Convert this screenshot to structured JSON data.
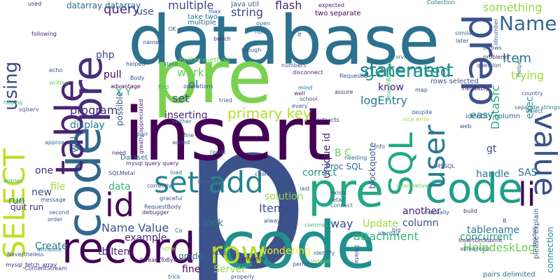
{
  "words": [
    {
      "text": "p",
      "color": "#3b528b"
    },
    {
      "text": "database",
      "color": "#2c728e"
    },
    {
      "text": "insert",
      "color": "#440154"
    },
    {
      "text": "code",
      "color": "#21908c"
    },
    {
      "text": "code",
      "color": "#31688e"
    },
    {
      "text": "pre",
      "color": "#7ad151"
    },
    {
      "text": "pre",
      "color": "#22a884"
    },
    {
      "text": "code",
      "color": "#1f9e89"
    },
    {
      "text": "prep",
      "color": "#3b528b"
    },
    {
      "text": "table",
      "color": "#482475"
    },
    {
      "text": "SELECT",
      "color": "#c0df25"
    },
    {
      "text": "record",
      "color": "#440154"
    },
    {
      "text": "row",
      "color": "#b5de2b"
    },
    {
      "text": "set add",
      "color": "#26828e"
    },
    {
      "text": "value",
      "color": "#3b528b"
    },
    {
      "text": "id",
      "color": "#440154"
    },
    {
      "text": "pre",
      "color": "#472d7b"
    },
    {
      "text": "SQL",
      "color": "#22a884"
    },
    {
      "text": "user",
      "color": "#2a788e"
    },
    {
      "text": "using",
      "color": "#3e4989"
    },
    {
      "text": "li",
      "color": "#440154"
    },
    {
      "text": "statement",
      "color": "#2a788e"
    },
    {
      "text": "generated",
      "color": "#1f9e89"
    },
    {
      "text": "Name",
      "color": "#31688e"
    },
    {
      "text": "primary key",
      "color": "#b5de2b"
    },
    {
      "text": "query",
      "color": "#482878"
    },
    {
      "text": "multiple",
      "color": "#3e4989"
    },
    {
      "text": "string",
      "color": "#414487"
    },
    {
      "text": "flash",
      "color": "#482475"
    },
    {
      "text": "something",
      "color": "#90d743"
    },
    {
      "text": "Item",
      "color": "#2a788e"
    },
    {
      "text": "trying",
      "color": "#a0da39"
    },
    {
      "text": "exec",
      "color": "#1f9e89"
    },
    {
      "text": "DataSrc",
      "color": "#25ab82"
    },
    {
      "text": "logEntry",
      "color": "#2a788e"
    },
    {
      "text": "HelpdeskLog",
      "color": "#6ccd5a"
    },
    {
      "text": "Name Value",
      "color": "#3b528b"
    },
    {
      "text": "attachment",
      "color": "#35b779"
    },
    {
      "text": "Items",
      "color": "#3e4989"
    },
    {
      "text": "concurrent",
      "color": "#1f9e89"
    },
    {
      "text": "connection",
      "color": "#21918c"
    },
    {
      "text": "tablename",
      "color": "#2a788e"
    },
    {
      "text": "column",
      "color": "#3b528b"
    },
    {
      "text": "another",
      "color": "#482475"
    },
    {
      "text": "example",
      "color": "#472d7b"
    },
    {
      "text": "wondering",
      "color": "#fde725"
    },
    {
      "text": "tblItem",
      "color": "#482878"
    },
    {
      "text": "Create",
      "color": "#26828e"
    },
    {
      "text": "fine",
      "color": "#440154"
    },
    {
      "text": "Server",
      "color": "#90d743"
    },
    {
      "text": "grade",
      "color": "#2c728e"
    },
    {
      "text": "correct",
      "color": "#21918c"
    },
    {
      "text": "way",
      "color": "#3b528b"
    },
    {
      "text": "Update",
      "color": "#a0da39"
    },
    {
      "text": "solution",
      "color": "#90d743"
    },
    {
      "text": "die",
      "color": "#3b528b"
    },
    {
      "text": "look",
      "color": "#2c728e"
    },
    {
      "text": "program",
      "color": "#472d7b"
    },
    {
      "text": "display",
      "color": "#2a788e"
    },
    {
      "text": "will",
      "color": "#31688e"
    },
    {
      "text": "work",
      "color": "#6ccd5a"
    },
    {
      "text": "ol",
      "color": "#2c728e"
    },
    {
      "text": "set",
      "color": "#3e4989"
    },
    {
      "text": "inserting",
      "color": "#482475"
    },
    {
      "text": "pull",
      "color": "#440154"
    },
    {
      "text": "X Y",
      "color": "#35b779"
    },
    {
      "text": "php",
      "color": "#414487"
    },
    {
      "text": "use",
      "color": "#3b528b"
    },
    {
      "text": "possible",
      "color": "#3b528b"
    },
    {
      "text": "know",
      "color": "#482475"
    },
    {
      "text": "easy",
      "color": "#21918c"
    },
    {
      "text": "gt",
      "color": "#3e4989"
    },
    {
      "text": "SAS",
      "color": "#2c728e"
    },
    {
      "text": "handle",
      "color": "#2a788e"
    },
    {
      "text": "blockquote",
      "color": "#3b528b"
    },
    {
      "text": "unique id",
      "color": "#482878"
    },
    {
      "text": "B C",
      "color": "#6ccd5a"
    },
    {
      "text": "Proc SQL",
      "color": "#31688e"
    },
    {
      "text": "one",
      "color": "#472d7b"
    },
    {
      "text": "run",
      "color": "#2c728e"
    },
    {
      "text": "data",
      "color": "#35b779"
    },
    {
      "text": "file",
      "color": "#a0da39"
    },
    {
      "text": "new",
      "color": "#3b528b"
    },
    {
      "text": "quit run",
      "color": "#482475"
    },
    {
      "text": "Dataset",
      "color": "#31688e"
    },
    {
      "text": "used",
      "color": "#482878"
    },
    {
      "text": "datarray datarray",
      "color": "#31688e"
    },
    {
      "text": "java util",
      "color": "#3b528b"
    },
    {
      "text": "expected",
      "color": "#482475"
    },
    {
      "text": "two separate",
      "color": "#440154"
    },
    {
      "text": "Collection",
      "color": "#2a788e"
    },
    {
      "text": "throws",
      "color": "#3b528b"
    },
    {
      "text": "separate strings",
      "color": "#2c728e"
    },
    {
      "text": "object",
      "color": "#31688e"
    },
    {
      "text": "country",
      "color": "#3b528b"
    },
    {
      "text": "mysql_fetch_array",
      "color": "#482475"
    },
    {
      "text": "ContentStream",
      "color": "#3e4989"
    },
    {
      "text": "StreamToByteArray",
      "color": "#482878"
    },
    {
      "text": "RequestBody",
      "color": "#3b528b"
    },
    {
      "text": "InsertOnSubmit",
      "color": "#472d7b"
    },
    {
      "text": "please explain",
      "color": "#3b528b"
    },
    {
      "text": "pairs delimited",
      "color": "#2c728e"
    },
    {
      "text": "rows selected",
      "color": "#3b528b"
    },
    {
      "text": "identity column",
      "color": "#31688e"
    },
    {
      "text": "mysql query query",
      "color": "#482475"
    },
    {
      "text": "SQLMetal",
      "color": "#3b528b"
    },
    {
      "text": "better method",
      "color": "#6ccd5a"
    },
    {
      "text": "greatly appreciated",
      "color": "#482878"
    },
    {
      "text": "Nevertheless",
      "color": "#3b528b"
    },
    {
      "text": "take two",
      "color": "#2a788e"
    },
    {
      "text": "multiple",
      "color": "#2c728e"
    },
    {
      "text": "MSSQL",
      "color": "#3b528b"
    },
    {
      "text": "StreamReader",
      "color": "#35b779"
    },
    {
      "text": "RequestID",
      "color": "#3b528b"
    },
    {
      "text": "inevitably",
      "color": "#482475"
    },
    {
      "text": "idnumber",
      "color": "#31688e"
    },
    {
      "text": "question",
      "color": "#3b528b"
    },
    {
      "text": "problems",
      "color": "#482878"
    },
    {
      "text": "Helper",
      "color": "#2c728e"
    },
    {
      "text": "helped",
      "color": "#3b528b"
    },
    {
      "text": "advantage",
      "color": "#440154"
    },
    {
      "text": "operations",
      "color": "#3e4989"
    },
    {
      "text": "numbers",
      "color": "#3b528b"
    },
    {
      "text": "disconnect",
      "color": "#482475"
    },
    {
      "text": "similar",
      "color": "#31688e"
    },
    {
      "text": "later",
      "color": "#3b528b"
    },
    {
      "text": "following",
      "color": "#482878"
    },
    {
      "text": "named",
      "color": "#3b528b"
    },
    {
      "text": "store",
      "color": "#2a788e"
    },
    {
      "text": "though",
      "color": "#3b528b"
    },
    {
      "text": "srvr",
      "color": "#31688e"
    },
    {
      "text": "echo",
      "color": "#3b528b"
    },
    {
      "text": "written",
      "color": "#6ccd5a"
    },
    {
      "text": "hoping",
      "color": "#35b779"
    },
    {
      "text": "sqlserv",
      "color": "#3b528b"
    },
    {
      "text": "result",
      "color": "#2c728e"
    },
    {
      "text": "tried",
      "color": "#31688e"
    },
    {
      "text": "every",
      "color": "#3b528b"
    },
    {
      "text": "extracts",
      "color": "#482475"
    },
    {
      "text": "nice error",
      "color": "#a0da39"
    },
    {
      "text": "web",
      "color": "#3b528b"
    },
    {
      "text": "despite",
      "color": "#31688e"
    },
    {
      "text": "assure",
      "color": "#482878"
    },
    {
      "text": "map",
      "color": "#3b528b"
    },
    {
      "text": "mind",
      "color": "#2c728e"
    },
    {
      "text": "school",
      "color": "#3b528b"
    },
    {
      "text": "well",
      "color": "#482475"
    },
    {
      "text": "info",
      "color": "#3b528b"
    },
    {
      "text": "needing",
      "color": "#31688e"
    },
    {
      "text": "chances",
      "color": "#3b528b"
    },
    {
      "text": "neither",
      "color": "#2c728e"
    },
    {
      "text": "added",
      "color": "#3b528b"
    },
    {
      "text": "need",
      "color": "#482878"
    },
    {
      "text": "approaches",
      "color": "#31688e"
    },
    {
      "text": "entries",
      "color": "#35b779"
    },
    {
      "text": "message",
      "color": "#3b528b"
    },
    {
      "text": "second",
      "color": "#31688e"
    },
    {
      "text": "order",
      "color": "#3b528b"
    },
    {
      "text": "load",
      "color": "#2c728e"
    },
    {
      "text": "correctly",
      "color": "#3b528b"
    },
    {
      "text": "readable",
      "color": "#31688e"
    },
    {
      "text": "graceful",
      "color": "#3b528b"
    },
    {
      "text": "debugger",
      "color": "#482475"
    },
    {
      "text": "informative",
      "color": "#6ccd5a"
    },
    {
      "text": "exists",
      "color": "#3b528b"
    },
    {
      "text": "detail",
      "color": "#31688e"
    },
    {
      "text": "connect",
      "color": "#2c728e"
    },
    {
      "text": "manually",
      "color": "#3b528b"
    },
    {
      "text": "build",
      "color": "#482878"
    },
    {
      "text": "big",
      "color": "#3b528b"
    },
    {
      "text": "identity",
      "color": "#31688e"
    },
    {
      "text": "commas",
      "color": "#35b779"
    },
    {
      "text": "always",
      "color": "#3b528b"
    },
    {
      "text": "abieavoids",
      "color": "#31688e"
    },
    {
      "text": "models",
      "color": "#3b528b"
    },
    {
      "text": "anybody",
      "color": "#482475"
    },
    {
      "text": "inserted",
      "color": "#3b528b"
    },
    {
      "text": "identify",
      "color": "#31688e"
    },
    {
      "text": "perform",
      "color": "#3b528b"
    },
    {
      "text": "indeed",
      "color": "#6ccd5a"
    },
    {
      "text": "Delete",
      "color": "#3b528b"
    },
    {
      "text": "trick",
      "color": "#31688e"
    },
    {
      "text": "properly",
      "color": "#3b528b"
    },
    {
      "text": "attribute",
      "color": "#2c728e"
    },
    {
      "text": "Body",
      "color": "#3b528b"
    },
    {
      "text": "OK",
      "color": "#31688e"
    },
    {
      "text": "max",
      "color": "#3b528b"
    },
    {
      "text": "bunch",
      "color": "#482878"
    },
    {
      "text": "null",
      "color": "#3b528b"
    },
    {
      "text": "open",
      "color": "#31688e"
    },
    {
      "text": "It",
      "color": "#3b528b"
    },
    {
      "text": "find",
      "color": "#35b779"
    },
    {
      "text": "pair",
      "color": "#31688e"
    },
    {
      "text": "last",
      "color": "#3b528b"
    },
    {
      "text": "Co",
      "color": "#3b528b"
    },
    {
      "text": "fine",
      "color": "#3b528b"
    },
    {
      "text": "other",
      "color": "#a0da39"
    },
    {
      "text": "B",
      "color": "#3b528b"
    }
  ]
}
